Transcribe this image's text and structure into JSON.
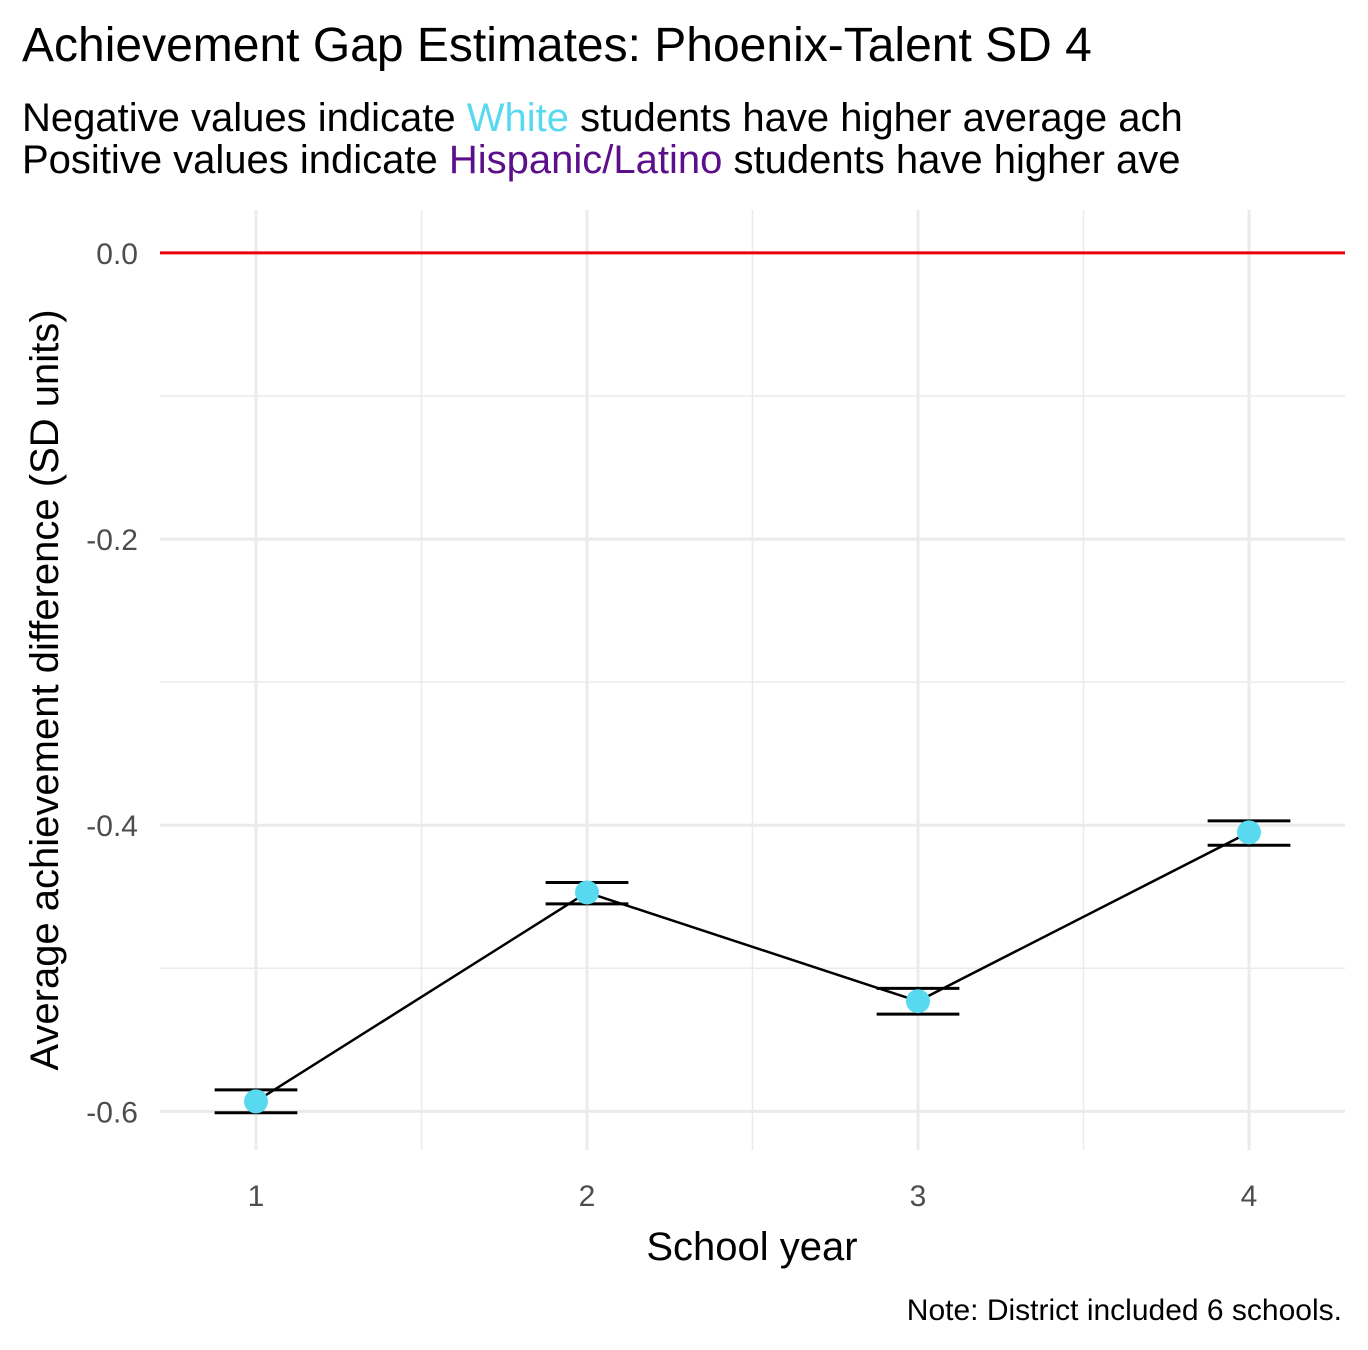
{
  "chart_data": {
    "type": "line",
    "title": "Achievement Gap Estimates: Phoenix-Talent SD 4",
    "subtitle": {
      "line1": {
        "before": "Negative values indicate ",
        "highlight": "White",
        "after": " students have higher average ach"
      },
      "line2": {
        "before": "Positive values indicate ",
        "highlight": "Hispanic/Latino",
        "after": " students have higher ave"
      }
    },
    "xlabel": "School year",
    "ylabel": "Average achievement difference (SD units)",
    "caption": "Note: District included 6 schools.",
    "x": [
      1,
      2,
      3,
      4
    ],
    "x_tick_labels": [
      "1",
      "2",
      "3",
      "4"
    ],
    "y_ticks": [
      0.0,
      -0.2,
      -0.4,
      -0.6
    ],
    "y_tick_labels": [
      "0.0",
      "-0.2",
      "-0.4",
      "-0.6"
    ],
    "ylim": [
      -0.627,
      0.03
    ],
    "xlim": [
      0.71,
      4.29
    ],
    "reference_line": 0.0,
    "grid": true,
    "series": [
      {
        "values": [
          -0.593,
          -0.447,
          -0.523,
          -0.405
        ],
        "lower": [
          -0.601,
          -0.455,
          -0.532,
          -0.414
        ],
        "upper": [
          -0.585,
          -0.44,
          -0.514,
          -0.397
        ]
      }
    ],
    "colors": {
      "point": "#59d9f0",
      "reference_line": "#e8000b",
      "line": "#000000",
      "grid": "#ebebeb",
      "white_highlight": "#59d9f0",
      "hispanic_highlight": "#5c0f8b"
    }
  }
}
